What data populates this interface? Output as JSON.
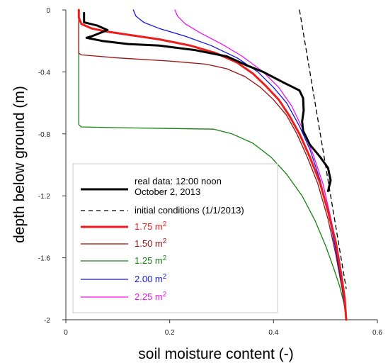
{
  "chart_data": {
    "type": "line",
    "xlabel": "soil moisture content (-)",
    "ylabel": "depth below ground (m)",
    "xlim": [
      0,
      0.6
    ],
    "ylim": [
      -2,
      0
    ],
    "x_ticks": [
      "0",
      "0.2",
      "0.4",
      "0.6"
    ],
    "y_ticks": [
      "0",
      "-0.4",
      "-0.8",
      "-1.2",
      "-1.6",
      "-2"
    ],
    "x_tick_values": [
      0,
      0.2,
      0.4,
      0.6
    ],
    "y_tick_values": [
      0,
      -0.4,
      -0.8,
      -1.2,
      -1.6,
      -2
    ],
    "grid": false,
    "legend_position": "lower-left",
    "series": [
      {
        "name": "real data: 12:00 noon October 2, 2013",
        "legend_lines": [
          "real data: 12:00 noon",
          "October 2, 2013"
        ],
        "color": "#000000",
        "style": "solid-thick",
        "x": [
          0.035,
          0.035,
          0.06,
          0.08,
          0.05,
          0.04,
          0.07,
          0.12,
          0.18,
          0.25,
          0.31,
          0.33,
          0.35,
          0.38,
          0.42,
          0.45,
          0.457,
          0.458,
          0.455,
          0.457,
          0.47,
          0.49,
          0.505,
          0.51,
          0.505
        ],
        "y": [
          -0.02,
          -0.08,
          -0.1,
          -0.13,
          -0.17,
          -0.18,
          -0.2,
          -0.22,
          -0.23,
          -0.26,
          -0.3,
          -0.33,
          -0.36,
          -0.4,
          -0.47,
          -0.52,
          -0.57,
          -0.65,
          -0.72,
          -0.78,
          -0.87,
          -0.95,
          -1.02,
          -1.1,
          -1.17
        ]
      },
      {
        "name": "initial conditions (1/1/2013)",
        "color": "#000000",
        "style": "dashed",
        "x": [
          0.45,
          0.54
        ],
        "y": [
          0,
          -1.8
        ]
      },
      {
        "name": "1.75 m2",
        "legend_base": "1.75 m",
        "legend_sup": "2",
        "color": "#ee1c1c",
        "style": "solid-thick",
        "x": [
          0.025,
          0.025,
          0.03,
          0.05,
          0.08,
          0.12,
          0.18,
          0.24,
          0.29,
          0.33,
          0.36,
          0.385,
          0.41,
          0.43,
          0.45,
          0.47,
          0.49,
          0.505,
          0.52,
          0.53,
          0.537,
          0.54
        ],
        "y": [
          0,
          -0.05,
          -0.09,
          -0.12,
          -0.14,
          -0.16,
          -0.19,
          -0.23,
          -0.28,
          -0.34,
          -0.41,
          -0.49,
          -0.58,
          -0.68,
          -0.8,
          -0.95,
          -1.12,
          -1.3,
          -1.5,
          -1.7,
          -1.86,
          -2
        ]
      },
      {
        "name": "1.50 m2",
        "legend_base": "1.50 m",
        "legend_sup": "2",
        "color": "#990f0f",
        "style": "solid",
        "x": [
          0.025,
          0.025,
          0.03,
          0.1,
          0.2,
          0.27,
          0.31,
          0.345,
          0.375,
          0.4,
          0.425,
          0.445,
          0.465,
          0.485,
          0.505,
          0.52,
          0.532,
          0.54
        ],
        "y": [
          0,
          -0.28,
          -0.29,
          -0.31,
          -0.33,
          -0.35,
          -0.38,
          -0.43,
          -0.5,
          -0.58,
          -0.68,
          -0.8,
          -0.95,
          -1.12,
          -1.35,
          -1.58,
          -1.8,
          -2
        ]
      },
      {
        "name": "1.25 m2",
        "legend_base": "1.25 m",
        "legend_sup": "2",
        "color": "#148014",
        "style": "solid",
        "x": [
          0.025,
          0.025,
          0.03,
          0.1,
          0.2,
          0.285,
          0.32,
          0.36,
          0.395,
          0.425,
          0.455,
          0.48,
          0.5,
          0.515,
          0.527,
          0.536,
          0.54
        ],
        "y": [
          0,
          -0.74,
          -0.755,
          -0.76,
          -0.765,
          -0.77,
          -0.8,
          -0.86,
          -0.95,
          -1.06,
          -1.2,
          -1.36,
          -1.52,
          -1.66,
          -1.78,
          -1.9,
          -2
        ]
      },
      {
        "name": "2.00 m2",
        "legend_base": "2.00 m",
        "legend_sup": "2",
        "color": "#1414e6",
        "style": "solid",
        "x": [
          0.13,
          0.135,
          0.15,
          0.18,
          0.23,
          0.28,
          0.33,
          0.37,
          0.4,
          0.425,
          0.45,
          0.47,
          0.49,
          0.505,
          0.52,
          0.533,
          0.54
        ],
        "y": [
          0,
          -0.04,
          -0.08,
          -0.12,
          -0.17,
          -0.23,
          -0.31,
          -0.4,
          -0.5,
          -0.6,
          -0.75,
          -0.9,
          -1.1,
          -1.3,
          -1.55,
          -1.8,
          -2
        ]
      },
      {
        "name": "2.25 m2",
        "legend_base": "2.25 m",
        "legend_sup": "2",
        "color": "#ee12ee",
        "style": "solid",
        "x": [
          0.21,
          0.215,
          0.23,
          0.26,
          0.3,
          0.34,
          0.38,
          0.41,
          0.435,
          0.455,
          0.475,
          0.495,
          0.51,
          0.525,
          0.535,
          0.54
        ],
        "y": [
          0,
          -0.04,
          -0.09,
          -0.15,
          -0.22,
          -0.3,
          -0.4,
          -0.5,
          -0.62,
          -0.76,
          -0.92,
          -1.12,
          -1.34,
          -1.58,
          -1.8,
          -2
        ]
      }
    ]
  }
}
